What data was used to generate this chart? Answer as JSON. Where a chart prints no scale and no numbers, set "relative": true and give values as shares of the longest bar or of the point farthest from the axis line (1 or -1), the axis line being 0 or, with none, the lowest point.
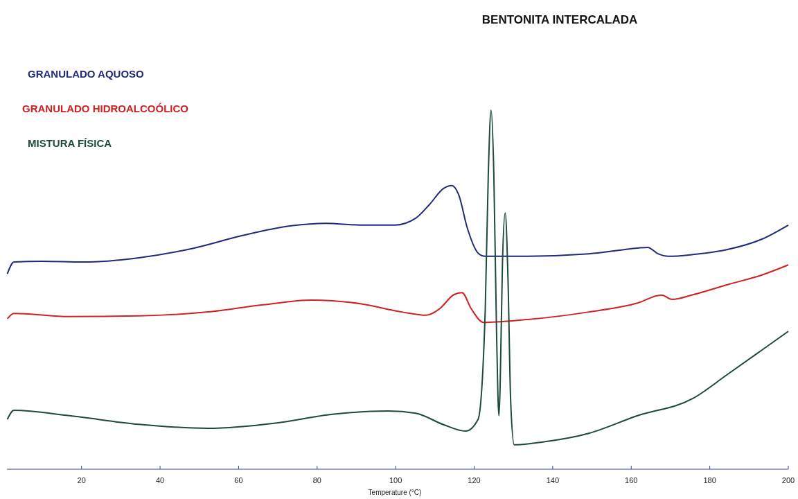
{
  "chart_data": {
    "type": "line",
    "title": "BENTONITA INTERCALADA",
    "xlabel": "Temperature (°C)",
    "relative": true,
    "legend": "top left",
    "grid": false,
    "marker": "none",
    "line_style": "solid",
    "xlim": [
      1,
      200
    ],
    "xticks": [
      20,
      40,
      60,
      80,
      100,
      120,
      140,
      160,
      180,
      200
    ],
    "series": [
      {
        "name": "GRANULADO AQUOSO",
        "color": "#1f2a7a",
        "x": [
          1.1,
          2.8,
          9.9,
          20.5,
          34.6,
          48.7,
          61.0,
          73.4,
          82.2,
          91.0,
          99.8,
          105.1,
          108.6,
          112.2,
          114.3,
          116.0,
          118.3,
          121.0,
          122.8,
          131.6,
          149.2,
          161.6,
          164.2,
          166.8,
          169.5,
          175.7,
          184.5,
          193.3,
          200
        ],
        "values": [
          0.544,
          0.577,
          0.579,
          0.577,
          0.589,
          0.616,
          0.651,
          0.678,
          0.685,
          0.68,
          0.68,
          0.699,
          0.737,
          0.782,
          0.79,
          0.766,
          0.67,
          0.602,
          0.593,
          0.593,
          0.6,
          0.616,
          0.618,
          0.6,
          0.593,
          0.598,
          0.612,
          0.641,
          0.68
        ]
      },
      {
        "name": "GRANULADO HIDROALCOÓLICO",
        "color": "#d02020",
        "x": [
          1.1,
          2.8,
          16.9,
          34.6,
          52.2,
          66.3,
          78.7,
          91.0,
          101.6,
          107.8,
          111.3,
          114.8,
          116.9,
          119.2,
          122.4,
          131.6,
          149.2,
          161.6,
          167.7,
          170.4,
          175.7,
          184.5,
          193.3,
          200
        ],
        "values": [
          0.419,
          0.434,
          0.425,
          0.427,
          0.438,
          0.458,
          0.471,
          0.461,
          0.438,
          0.429,
          0.448,
          0.486,
          0.492,
          0.448,
          0.409,
          0.415,
          0.438,
          0.463,
          0.485,
          0.473,
          0.486,
          0.514,
          0.541,
          0.569
        ]
      },
      {
        "name": "MISTURA FÍSICA",
        "color": "#1d4a3a",
        "x": [
          1.1,
          2.8,
          16.9,
          34.6,
          52.2,
          69.8,
          83.9,
          98.1,
          105.1,
          112.2,
          117.8,
          121.0,
          122.8,
          123.6,
          124.3,
          125.0,
          125.7,
          126.3,
          126.6,
          127.2,
          127.9,
          128.6,
          129.3,
          130.2,
          136.9,
          149.2,
          161.6,
          175.7,
          184.5,
          193.3,
          200
        ],
        "values": [
          0.139,
          0.164,
          0.149,
          0.125,
          0.114,
          0.129,
          0.153,
          0.162,
          0.156,
          0.124,
          0.106,
          0.139,
          0.438,
          0.824,
          1,
          0.824,
          0.38,
          0.149,
          0.226,
          0.573,
          0.714,
          0.535,
          0.187,
          0.068,
          0.075,
          0.1,
          0.149,
          0.197,
          0.264,
          0.332,
          0.384
        ]
      }
    ]
  }
}
